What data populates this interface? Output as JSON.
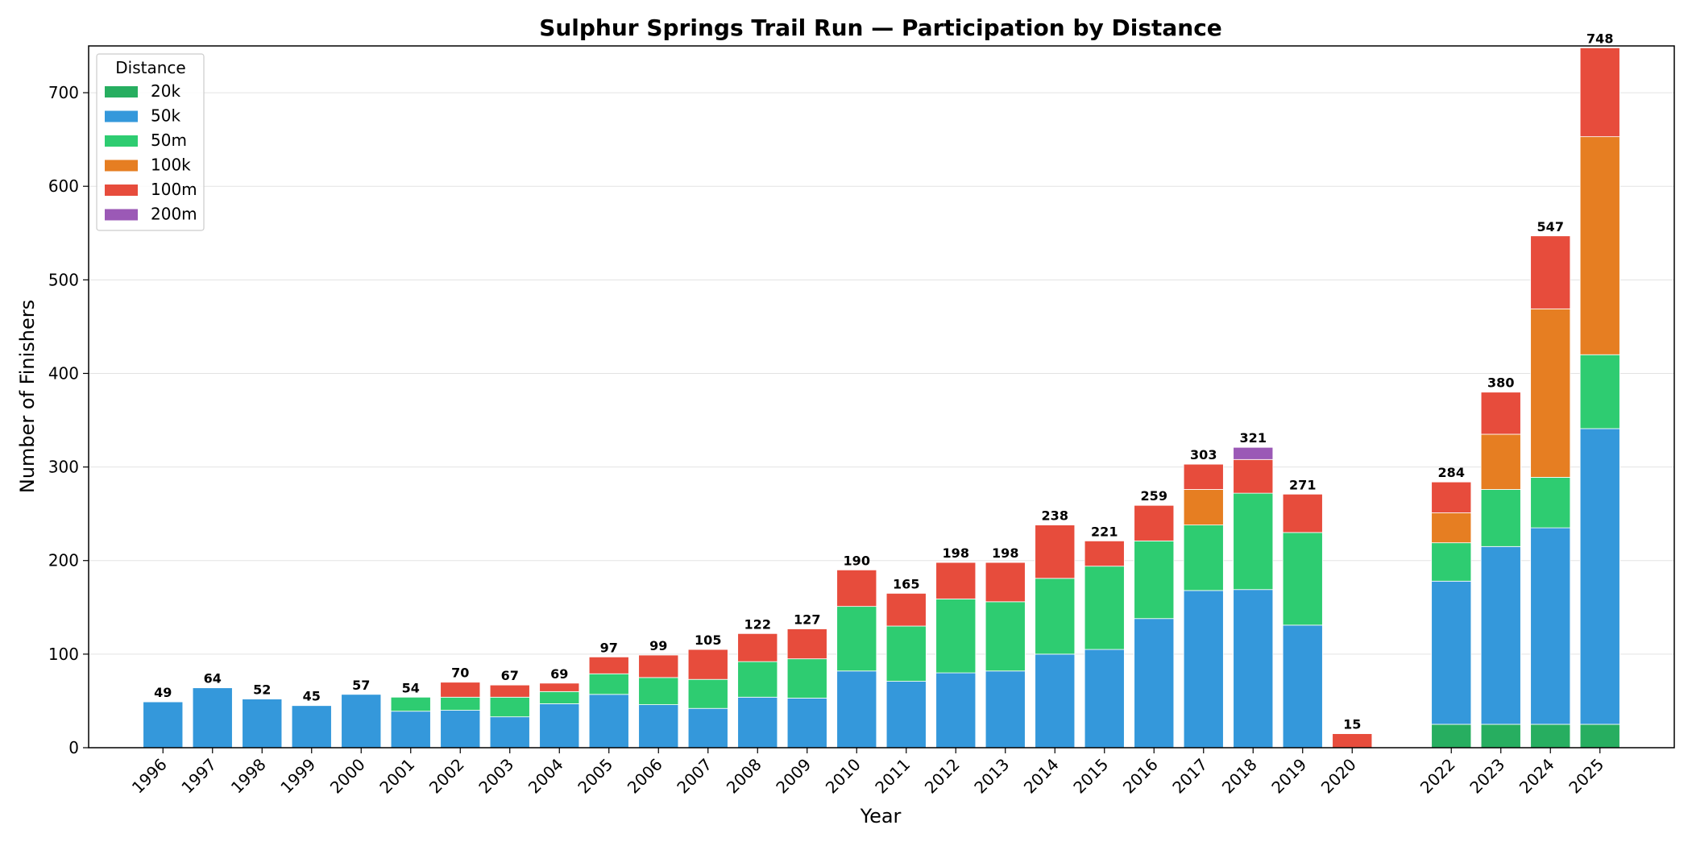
{
  "chart_data": {
    "type": "bar",
    "stacked": true,
    "title": "Sulphur Springs Trail Run — Participation by Distance",
    "xlabel": "Year",
    "ylabel": "Number of Finishers",
    "ylim": [
      0,
      750
    ],
    "yticks": [
      0,
      100,
      200,
      300,
      400,
      500,
      600,
      700
    ],
    "grid": "y",
    "legend": {
      "title": "Distance",
      "placement": "top-left"
    },
    "categories": [
      "1996",
      "1997",
      "1998",
      "1999",
      "2000",
      "2001",
      "2002",
      "2003",
      "2004",
      "2005",
      "2006",
      "2007",
      "2008",
      "2009",
      "2010",
      "2011",
      "2012",
      "2013",
      "2014",
      "2015",
      "2016",
      "2017",
      "2018",
      "2019",
      "2020",
      "2022",
      "2023",
      "2024",
      "2025"
    ],
    "category_positions": [
      0,
      1,
      2,
      3,
      4,
      5,
      6,
      7,
      8,
      9,
      10,
      11,
      12,
      13,
      14,
      15,
      16,
      17,
      18,
      19,
      20,
      21,
      22,
      23,
      24,
      26,
      27,
      28,
      29
    ],
    "series": [
      {
        "name": "20k",
        "color": "#27ae60",
        "values": [
          0,
          0,
          0,
          0,
          0,
          0,
          0,
          0,
          0,
          0,
          0,
          0,
          0,
          0,
          0,
          0,
          0,
          0,
          0,
          0,
          0,
          0,
          0,
          0,
          0,
          25,
          25,
          25,
          25
        ]
      },
      {
        "name": "50k",
        "color": "#3498db",
        "values": [
          49,
          64,
          52,
          45,
          57,
          39,
          40,
          33,
          47,
          57,
          46,
          42,
          54,
          53,
          82,
          71,
          80,
          82,
          100,
          105,
          138,
          168,
          169,
          131,
          0,
          153,
          190,
          210,
          316
        ]
      },
      {
        "name": "50m",
        "color": "#2ecc71",
        "values": [
          0,
          0,
          0,
          0,
          0,
          15,
          14,
          21,
          13,
          22,
          29,
          31,
          38,
          42,
          69,
          59,
          79,
          74,
          81,
          89,
          83,
          70,
          103,
          99,
          0,
          41,
          61,
          54,
          79
        ]
      },
      {
        "name": "100k",
        "color": "#e67e22",
        "values": [
          0,
          0,
          0,
          0,
          0,
          0,
          0,
          0,
          0,
          0,
          0,
          0,
          0,
          0,
          0,
          0,
          0,
          0,
          0,
          0,
          0,
          38,
          0,
          0,
          0,
          32,
          59,
          180,
          233
        ]
      },
      {
        "name": "100m",
        "color": "#e74c3c",
        "values": [
          0,
          0,
          0,
          0,
          0,
          0,
          16,
          13,
          9,
          18,
          24,
          32,
          30,
          32,
          39,
          35,
          39,
          42,
          57,
          27,
          38,
          27,
          36,
          41,
          15,
          33,
          45,
          78,
          95
        ]
      },
      {
        "name": "200m",
        "color": "#9b59b6",
        "values": [
          0,
          0,
          0,
          0,
          0,
          0,
          0,
          0,
          0,
          0,
          0,
          0,
          0,
          0,
          0,
          0,
          0,
          0,
          0,
          0,
          0,
          0,
          13,
          0,
          0,
          0,
          0,
          0,
          0
        ]
      }
    ],
    "totals": [
      49,
      64,
      52,
      45,
      57,
      54,
      70,
      67,
      69,
      97,
      99,
      105,
      122,
      127,
      190,
      165,
      198,
      198,
      238,
      221,
      259,
      303,
      321,
      271,
      15,
      284,
      380,
      547,
      748
    ]
  }
}
